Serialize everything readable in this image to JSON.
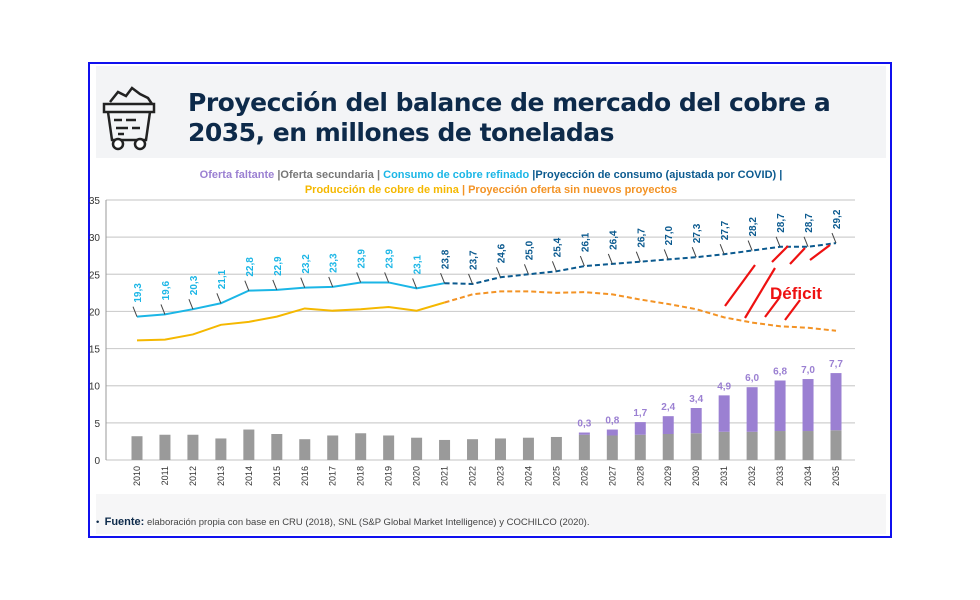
{
  "title": "Proyección del balance de mercado del cobre a 2035, en millones de toneladas",
  "legend": {
    "oferta_faltante": "Oferta faltante",
    "oferta_secundaria": "Oferta secundaria",
    "consumo": "Consumo de cobre refinado",
    "proy_consumo": "Proyección de consumo (ajustada por COVID)",
    "produccion": "Producción  de cobre de mina",
    "proy_oferta": "Proyección oferta sin nuevos proyectos",
    "separator": "|"
  },
  "footer": {
    "label": "Fuente:",
    "text": "elaboración propia con base en CRU (2018),  SNL (S&P Global Market Intelligence)  y COCHILCO (2020)."
  },
  "colors": {
    "oferta_faltante": "#9b80d2",
    "oferta_secundaria": "#9a9a9a",
    "consumo": "#1bb6e6",
    "proy_consumo": "#0b5a8f",
    "produccion": "#f5b800",
    "proy_oferta": "#f39325",
    "deficit": "#ee1111",
    "frame": "#1010ee"
  },
  "icon": "mine-cart-icon",
  "chart_data": {
    "type": "bar+line",
    "categories": [
      "2010",
      "2011",
      "2012",
      "2013",
      "2014",
      "2015",
      "2016",
      "2017",
      "2018",
      "2019",
      "2020",
      "2021",
      "2022",
      "2023",
      "2024",
      "2025",
      "2026",
      "2027",
      "2028",
      "2029",
      "2030",
      "2031",
      "2032",
      "2033",
      "2034",
      "2035"
    ],
    "ylim": [
      0,
      35
    ],
    "yticks": [
      "0",
      "5",
      "10",
      "15",
      "20",
      "25",
      "30",
      "35"
    ],
    "grid": true,
    "legend_position": "top",
    "annotation": "Déficit",
    "series": [
      {
        "name": "Oferta secundaria",
        "type": "bar",
        "values": [
          3.2,
          3.4,
          3.4,
          2.9,
          4.1,
          3.5,
          2.8,
          3.3,
          3.6,
          3.3,
          3.0,
          2.7,
          2.8,
          2.9,
          3.0,
          3.1,
          3.4,
          3.3,
          3.4,
          3.5,
          3.6,
          3.8,
          3.8,
          3.9,
          3.9,
          4.0
        ]
      },
      {
        "name": "Oferta faltante",
        "type": "bar-stacked",
        "values": [
          null,
          null,
          null,
          null,
          null,
          null,
          null,
          null,
          null,
          null,
          null,
          null,
          null,
          null,
          null,
          null,
          0.3,
          0.8,
          1.7,
          2.4,
          3.4,
          4.9,
          6.0,
          6.8,
          7.0,
          7.7
        ],
        "labels": [
          "",
          "",
          "",
          "",
          "",
          "",
          "",
          "",
          "",
          "",
          "",
          "",
          "",
          "",
          "",
          "",
          "0,3",
          "0,8",
          "1,7",
          "2,4",
          "3,4",
          "4,9",
          "6,0",
          "6,8",
          "7,0",
          "7,7"
        ]
      },
      {
        "name": "Consumo de cobre refinado",
        "type": "line",
        "values": [
          19.3,
          19.6,
          20.3,
          21.1,
          22.8,
          22.9,
          23.2,
          23.3,
          23.9,
          23.9,
          23.1,
          23.8,
          null,
          null,
          null,
          null,
          null,
          null,
          null,
          null,
          null,
          null,
          null,
          null,
          null,
          null
        ],
        "labels": [
          "19,3",
          "19,6",
          "20,3",
          "21,1",
          "22,8",
          "22,9",
          "23,2",
          "23,3",
          "23,9",
          "23,9",
          "23,1",
          "",
          "",
          "",
          "",
          "",
          "",
          "",
          "",
          "",
          "",
          "",
          "",
          "",
          "",
          ""
        ]
      },
      {
        "name": "Proyección de consumo (ajustada por COVID)",
        "type": "line-dashed",
        "values": [
          null,
          null,
          null,
          null,
          null,
          null,
          null,
          null,
          null,
          null,
          null,
          23.8,
          23.7,
          24.6,
          25.0,
          25.4,
          26.1,
          26.4,
          26.7,
          27.0,
          27.3,
          27.7,
          28.2,
          28.7,
          28.7,
          29.2
        ],
        "labels": [
          "",
          "",
          "",
          "",
          "",
          "",
          "",
          "",
          "",
          "",
          "",
          "23,8",
          "23,7",
          "24,6",
          "25,0",
          "25,4",
          "26,1",
          "26,4",
          "26,7",
          "27,0",
          "27,3",
          "27,7",
          "28,2",
          "28,7",
          "28,7",
          "29,2"
        ]
      },
      {
        "name": "Producción  de cobre de mina",
        "type": "line",
        "values": [
          16.1,
          16.2,
          16.9,
          18.2,
          18.6,
          19.3,
          20.4,
          20.1,
          20.3,
          20.6,
          20.1,
          21.2,
          null,
          null,
          null,
          null,
          null,
          null,
          null,
          null,
          null,
          null,
          null,
          null,
          null,
          null
        ]
      },
      {
        "name": "Proyección oferta sin nuevos proyectos",
        "type": "line-dashed",
        "values": [
          null,
          null,
          null,
          null,
          null,
          null,
          null,
          null,
          null,
          null,
          null,
          21.2,
          22.3,
          22.7,
          22.7,
          22.5,
          22.6,
          22.3,
          21.6,
          21.0,
          20.3,
          19.2,
          18.5,
          18.0,
          17.8,
          17.4
        ]
      }
    ]
  }
}
